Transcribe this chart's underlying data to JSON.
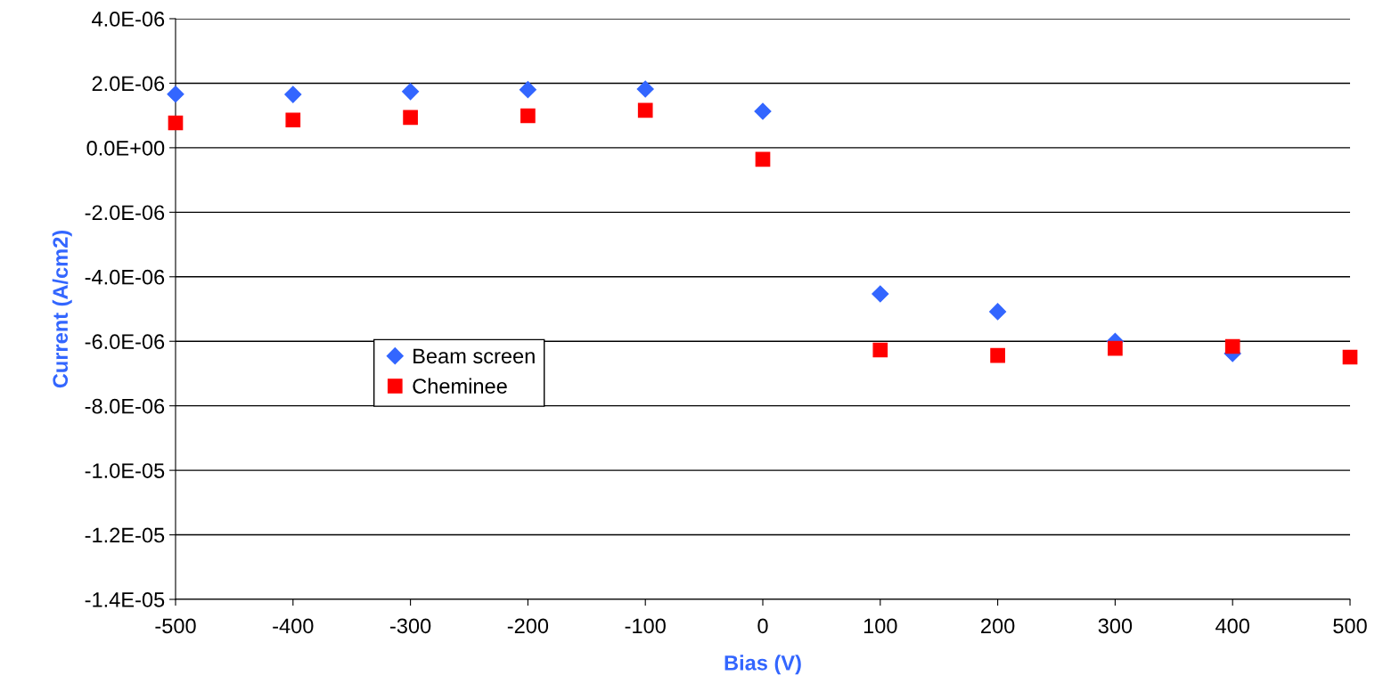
{
  "chart_data": {
    "type": "scatter",
    "xlabel": "Bias (V)",
    "ylabel": "Current (A/cm2)",
    "x": [
      -500,
      -400,
      -300,
      -200,
      -100,
      0,
      100,
      200,
      300,
      400,
      500
    ],
    "series": [
      {
        "name": "Beam screen",
        "color": "#3366ff",
        "marker": "diamond",
        "values": [
          1.66e-06,
          1.65e-06,
          1.74e-06,
          1.8e-06,
          1.82e-06,
          1.13e-06,
          -4.53e-06,
          -5.08e-06,
          -6e-06,
          -6.38e-06,
          null
        ]
      },
      {
        "name": "Cheminee",
        "color": "#ff0000",
        "marker": "square",
        "values": [
          7.7e-07,
          8.6e-07,
          9.4e-07,
          9.9e-07,
          1.16e-06,
          -3.6e-07,
          -6.27e-06,
          -6.44e-06,
          -6.22e-06,
          -6.16e-06,
          -6.49e-06
        ]
      }
    ],
    "xlim": [
      -500,
      500
    ],
    "xticks": [
      -500,
      -400,
      -300,
      -200,
      -100,
      0,
      100,
      200,
      300,
      400,
      500
    ],
    "ylim": [
      -1.4e-05,
      4e-06
    ],
    "yticks": [
      {
        "value": -1.4e-05,
        "label": "-1.4E-05"
      },
      {
        "value": -1.2e-05,
        "label": "-1.2E-05"
      },
      {
        "value": -1e-05,
        "label": "-1.0E-05"
      },
      {
        "value": -8e-06,
        "label": "-8.0E-06"
      },
      {
        "value": -6e-06,
        "label": "-6.0E-06"
      },
      {
        "value": -4e-06,
        "label": "-4.0E-06"
      },
      {
        "value": -2e-06,
        "label": "-2.0E-06"
      },
      {
        "value": 0,
        "label": "0.0E+00"
      },
      {
        "value": 2e-06,
        "label": "2.0E-06"
      },
      {
        "value": 4e-06,
        "label": "4.0E-06"
      }
    ],
    "grid": "y",
    "legend": "center left"
  }
}
